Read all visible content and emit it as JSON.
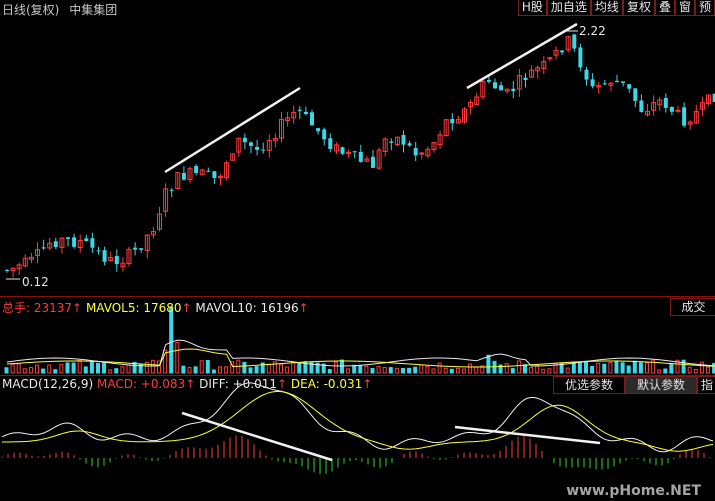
{
  "header": {
    "title_period": "日线(复权)",
    "stock_name": "中集集团"
  },
  "toolbar": {
    "buttons": [
      "H股",
      "加自选",
      "均线",
      "复权",
      "叠",
      "窗",
      "预"
    ]
  },
  "price_panel": {
    "high_label": "2.22",
    "low_label": "0.12"
  },
  "volume_panel": {
    "total_label": "总手: 23137",
    "mavol5_label": "MAVOL5: 17680",
    "mavol10_label": "MAVOL10: 16196",
    "right_button": "成交"
  },
  "macd_panel": {
    "name_label": "MACD(12,26,9)",
    "macd_label": "MACD: +0.083",
    "diff_label": "DIFF: +0.011",
    "dea_label": "DEA: -0.031",
    "btn_optimize": "优选参数",
    "btn_default": "默认参数",
    "btn_indicator": "指"
  },
  "watermark": "www.pHome.NET",
  "colors": {
    "up": "#ff3b3b",
    "down": "#3ad8e8",
    "ma5": "#eaeaea",
    "ma10": "#ffff3a",
    "macd_up": "#ff3b3b",
    "macd_down": "#2dd52d",
    "separator": "#8a1010"
  }
}
